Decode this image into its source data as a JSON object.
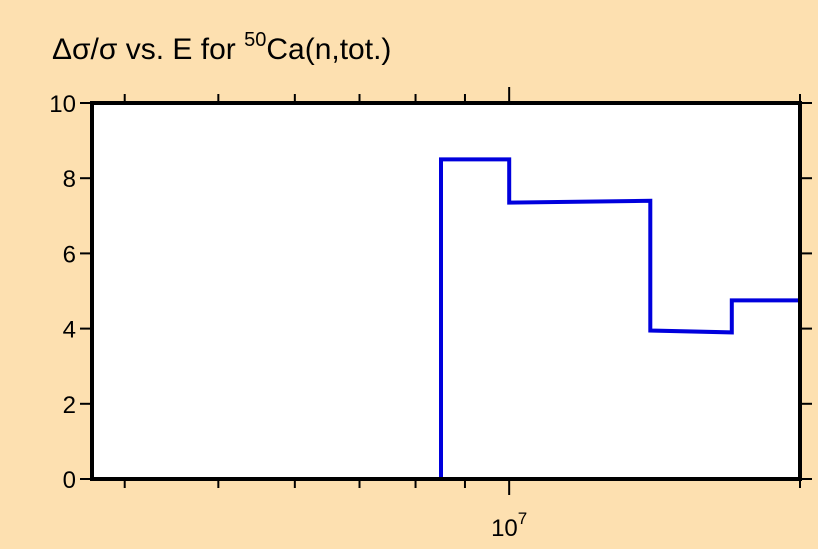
{
  "chart_data": {
    "type": "line",
    "title": {
      "prefix": "Δσ/σ vs. E for ",
      "superscript": "50",
      "suffix": "Ca(n,tot.)"
    },
    "xlabel": "",
    "ylabel": "",
    "x_scale": "log",
    "xlim": [
      3700000,
      20000000
    ],
    "ylim": [
      0,
      10
    ],
    "grid": false,
    "legend": "none",
    "y_ticks": [
      {
        "value": 0,
        "label": "0"
      },
      {
        "value": 2,
        "label": "2"
      },
      {
        "value": 4,
        "label": "4"
      },
      {
        "value": 6,
        "label": "6"
      },
      {
        "value": 8,
        "label": "8"
      },
      {
        "value": 10,
        "label": "10"
      }
    ],
    "x_major_ticks": [
      {
        "value": 10000000,
        "base": "10",
        "exponent": "7"
      }
    ],
    "x_minor_ticks": [
      4000000,
      5000000,
      6000000,
      7000000,
      8000000,
      9000000,
      20000000
    ],
    "series": [
      {
        "color": "#0000dd",
        "step": true,
        "x": [
          8500000,
          8500000,
          10000000,
          10000000,
          14000000,
          14000000,
          17000000,
          17000000,
          20000000,
          20000000
        ],
        "y": [
          0,
          8.5,
          8.5,
          7.35,
          7.4,
          3.95,
          3.9,
          4.75,
          4.75,
          0
        ]
      }
    ]
  }
}
